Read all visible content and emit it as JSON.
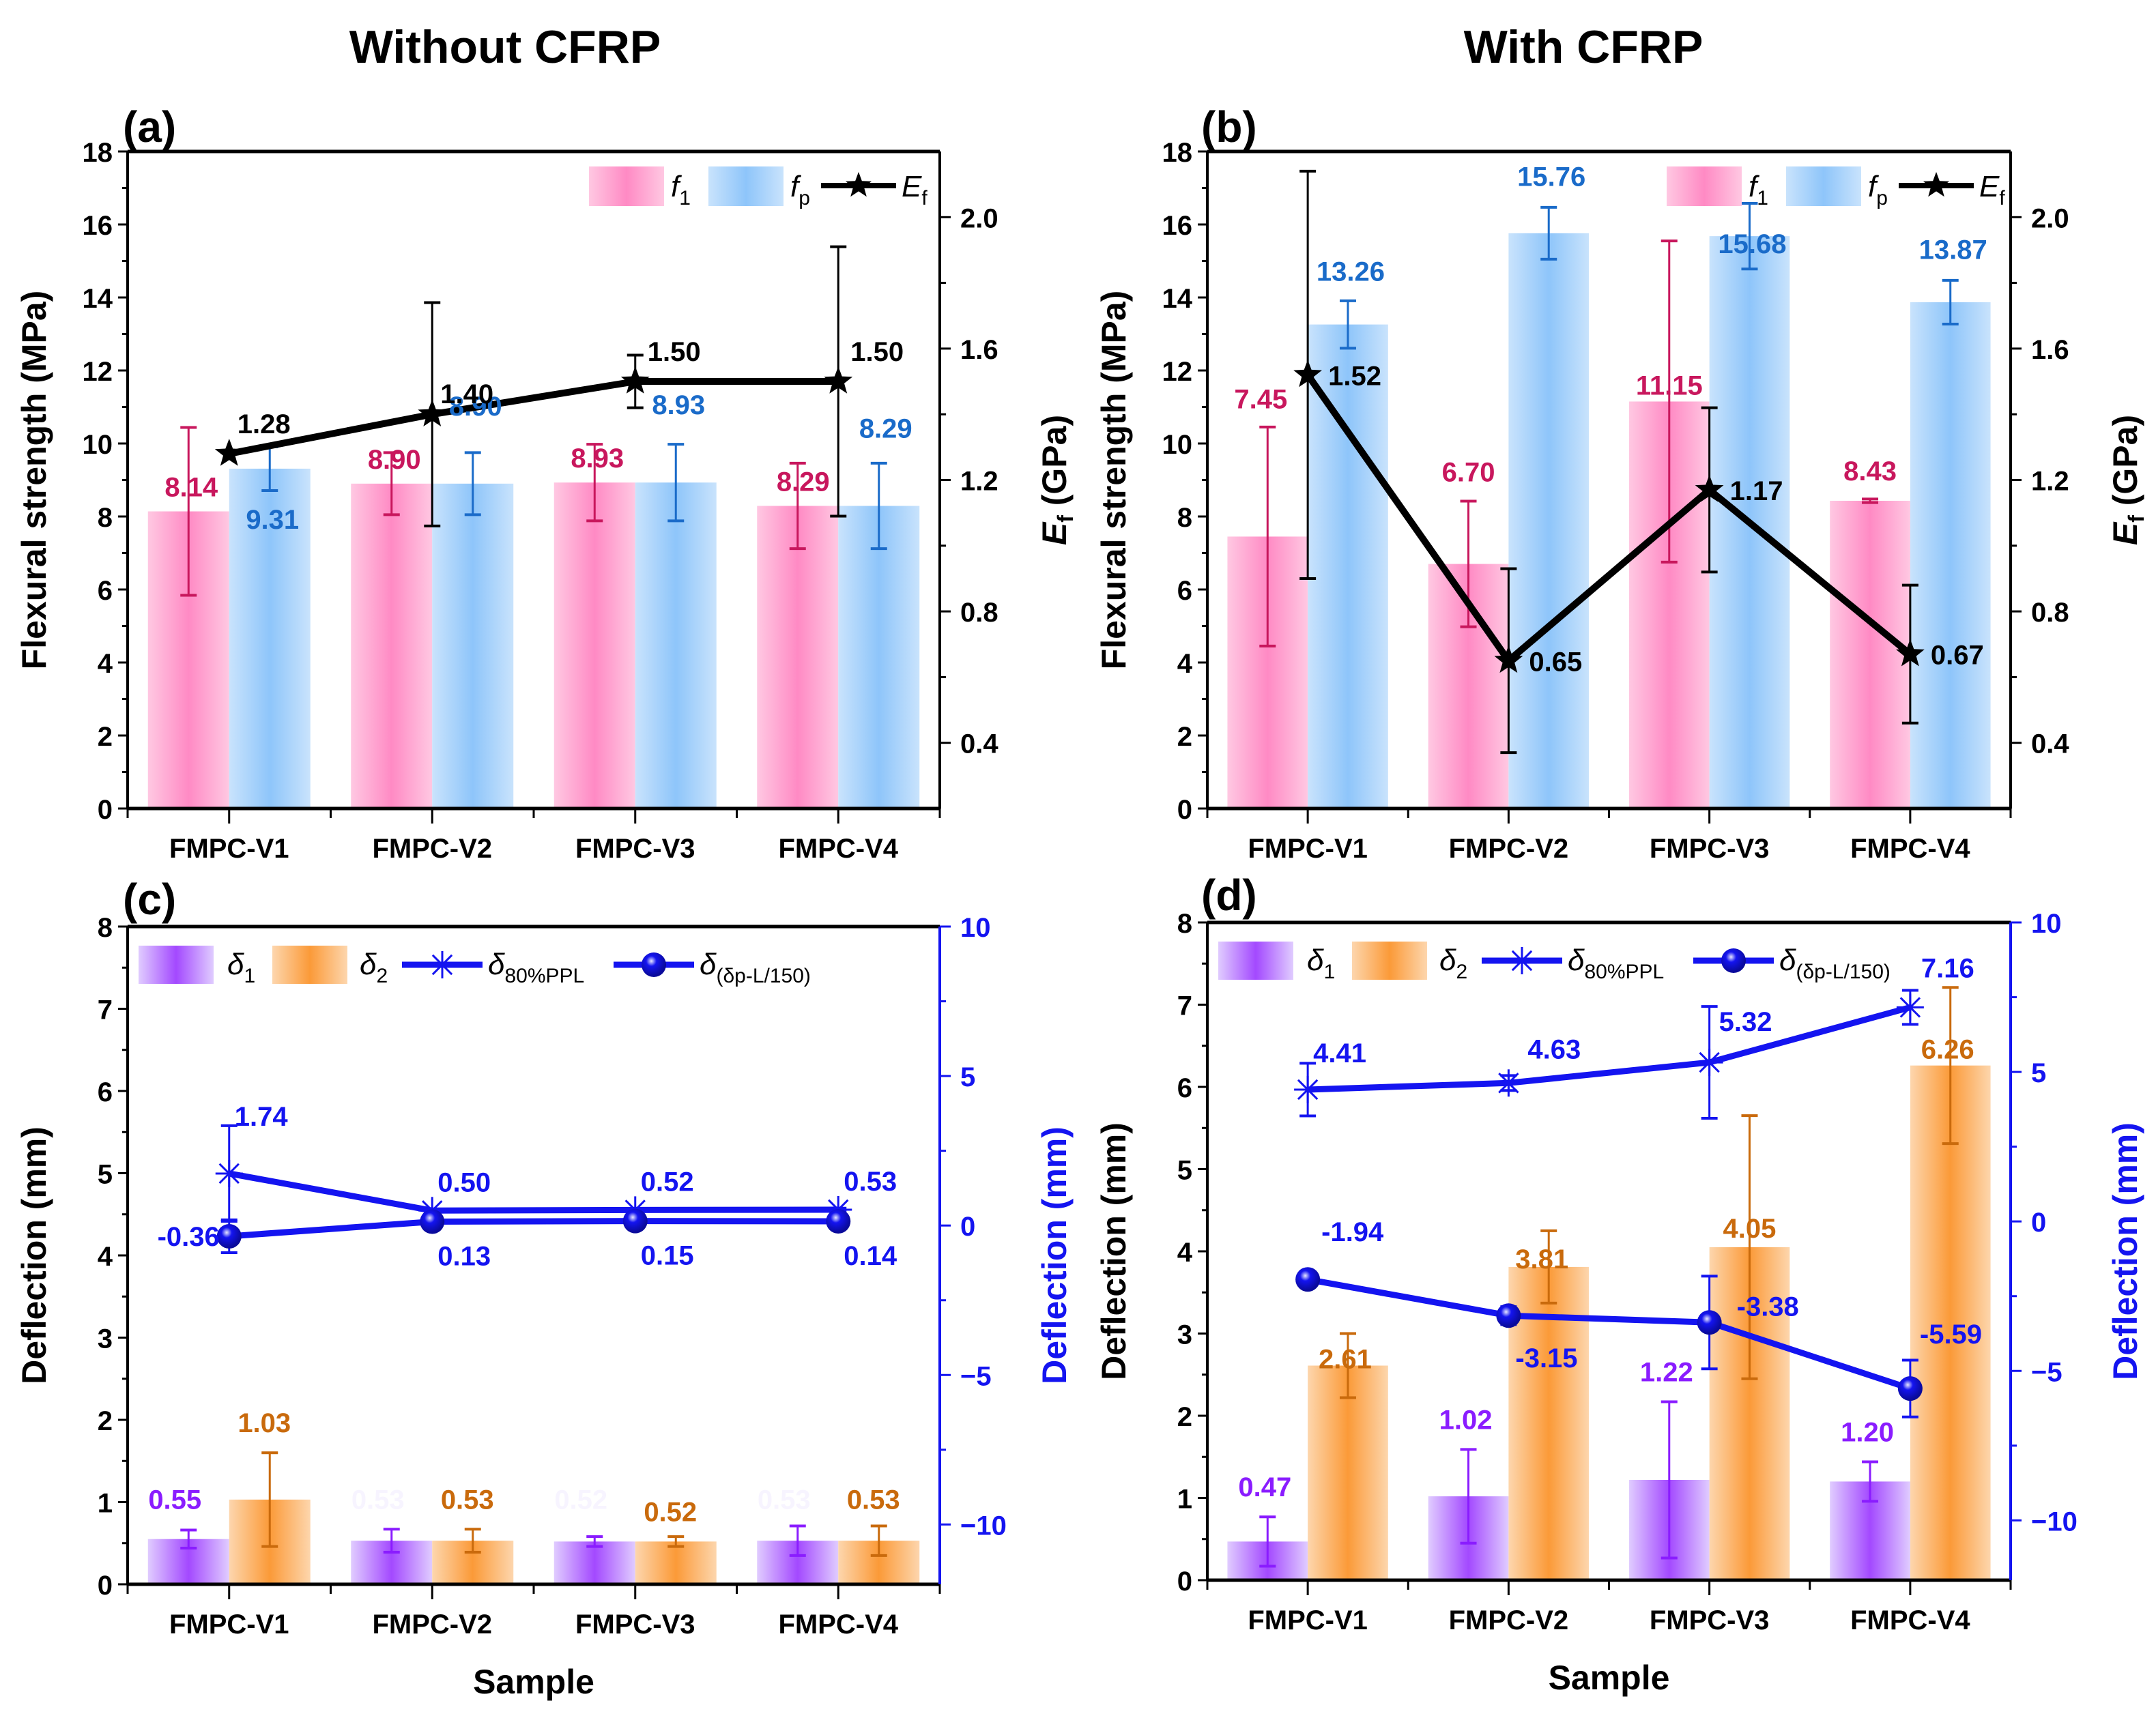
{
  "figure": {
    "column_titles": [
      "Without CFRP",
      "With CFRP"
    ]
  },
  "colors": {
    "f1_bar": "#ff8ac4",
    "f1_bar_light": "#ffc8e2",
    "f1_label": "#c8175d",
    "fp_bar": "#8ec5fa",
    "fp_bar_light": "#c9e3fc",
    "fp_label": "#1a6bc9",
    "ef_line": "#000000",
    "delta1_bar": "#a349ff",
    "delta1_bar_light": "#e0ccff",
    "delta1_label": "#8a1cff",
    "delta2_bar": "#fb9a38",
    "delta2_bar_light": "#fdd6ad",
    "delta2_label": "#c96a0c",
    "deflection_line": "#1414f0"
  },
  "chart_data": [
    {
      "panel": "(a)",
      "type": "bar",
      "column_title": "Without CFRP",
      "categories": [
        "FMPC-V1",
        "FMPC-V2",
        "FMPC-V3",
        "FMPC-V4"
      ],
      "xlabel": "",
      "ylabel": "Flexural strength (MPa)",
      "ylim": [
        0,
        18
      ],
      "yticks": [
        0,
        2,
        4,
        6,
        8,
        10,
        12,
        14,
        16,
        18
      ],
      "y2label": "E_f (GPa)",
      "y2label_main": "E",
      "y2label_sub": "f",
      "y2label_unit": " (GPa)",
      "y2lim": [
        0.2,
        2.2
      ],
      "y2ticks": [
        0.4,
        0.8,
        1.2,
        1.6,
        2.0
      ],
      "y2tick_labels": [
        "0.4",
        "0.8",
        "1.2",
        "1.6",
        "2.0"
      ],
      "legend": [
        {
          "key": "f1",
          "main": "f",
          "sub": "1",
          "kind": "bar"
        },
        {
          "key": "fp",
          "main": "f",
          "sub": "p",
          "kind": "bar"
        },
        {
          "key": "Ef",
          "main": "E",
          "sub": "f",
          "kind": "line-star"
        }
      ],
      "legend_position": "top-right",
      "series": [
        {
          "name": "f1",
          "axis": "left",
          "kind": "bar",
          "values": [
            8.14,
            8.9,
            8.93,
            8.29
          ],
          "errors": [
            2.3,
            0.85,
            1.05,
            1.17
          ],
          "labels": [
            "8.14",
            "8.90",
            "8.93",
            "8.29"
          ]
        },
        {
          "name": "fp",
          "axis": "left",
          "kind": "bar",
          "values": [
            9.31,
            8.9,
            8.93,
            8.29
          ],
          "errors": [
            0.6,
            0.85,
            1.05,
            1.17
          ],
          "labels": [
            "9.31",
            "8.90",
            "8.93",
            "8.29"
          ]
        },
        {
          "name": "Ef",
          "axis": "right",
          "kind": "line",
          "values": [
            1.28,
            1.4,
            1.5,
            1.5
          ],
          "errors": [
            0.0,
            0.34,
            0.08,
            0.41
          ],
          "labels": [
            "1.28",
            "1.40",
            "1.50",
            "1.50"
          ]
        }
      ]
    },
    {
      "panel": "(b)",
      "type": "bar",
      "column_title": "With CFRP",
      "categories": [
        "FMPC-V1",
        "FMPC-V2",
        "FMPC-V3",
        "FMPC-V4"
      ],
      "xlabel": "",
      "ylabel": "Flexural strength (MPa)",
      "ylim": [
        0,
        18
      ],
      "yticks": [
        0,
        2,
        4,
        6,
        8,
        10,
        12,
        14,
        16,
        18
      ],
      "y2label": "E_f (GPa)",
      "y2label_main": "E",
      "y2label_sub": "f",
      "y2label_unit": " (GPa)",
      "y2lim": [
        0.2,
        2.2
      ],
      "y2ticks": [
        0.4,
        0.8,
        1.2,
        1.6,
        2.0
      ],
      "y2tick_labels": [
        "0.4",
        "0.8",
        "1.2",
        "1.6",
        "2.0"
      ],
      "legend": [
        {
          "key": "f1",
          "main": "f",
          "sub": "1",
          "kind": "bar"
        },
        {
          "key": "fp",
          "main": "f",
          "sub": "p",
          "kind": "bar"
        },
        {
          "key": "Ef",
          "main": "E",
          "sub": "f",
          "kind": "line-star"
        }
      ],
      "legend_position": "top-right",
      "series": [
        {
          "name": "f1",
          "axis": "left",
          "kind": "bar",
          "values": [
            7.45,
            6.7,
            11.15,
            8.43
          ],
          "errors": [
            3.0,
            1.72,
            4.4,
            0.05
          ],
          "labels": [
            "7.45",
            "6.70",
            "11.15",
            "8.43"
          ]
        },
        {
          "name": "fp",
          "axis": "left",
          "kind": "bar",
          "values": [
            13.26,
            15.76,
            15.68,
            13.87
          ],
          "errors": [
            0.65,
            0.71,
            0.9,
            0.6
          ],
          "labels": [
            "13.26",
            "15.76",
            "15.68",
            "13.87"
          ]
        },
        {
          "name": "Ef",
          "axis": "right",
          "kind": "line",
          "values": [
            1.52,
            0.65,
            1.17,
            0.67
          ],
          "errors": [
            0.62,
            0.28,
            0.25,
            0.21
          ],
          "labels": [
            "1.52",
            "0.65",
            "1.17",
            "0.67"
          ]
        }
      ]
    },
    {
      "panel": "(c)",
      "type": "bar",
      "column_title": "Without CFRP",
      "categories": [
        "FMPC-V1",
        "FMPC-V2",
        "FMPC-V3",
        "FMPC-V4"
      ],
      "xlabel": "Sample",
      "ylabel": "Deflection (mm)",
      "ylim": [
        0,
        8
      ],
      "yticks": [
        0,
        1,
        2,
        3,
        4,
        5,
        6,
        7,
        8
      ],
      "y2label": "Deflection (mm)",
      "y2lim": [
        -12,
        10
      ],
      "y2ticks": [
        -10,
        -5,
        0,
        5,
        10
      ],
      "y2tick_labels": [
        "−10",
        "−5",
        "0",
        "5",
        "10"
      ],
      "legend": [
        {
          "key": "d1",
          "main": "δ",
          "sub": "1",
          "kind": "bar"
        },
        {
          "key": "d2",
          "main": "δ",
          "sub": "2",
          "kind": "bar"
        },
        {
          "key": "d80",
          "main": "δ",
          "sub": "80%PPL",
          "kind": "line-asterisk"
        },
        {
          "key": "dL",
          "main": "δ",
          "sub": "(δp-L/150)",
          "kind": "line-ball"
        }
      ],
      "legend_position": "top-left",
      "series": [
        {
          "name": "δ1",
          "axis": "left",
          "kind": "bar",
          "values": [
            0.55,
            0.53,
            0.52,
            0.53
          ],
          "errors": [
            0.11,
            0.14,
            0.06,
            0.18
          ],
          "labels": [
            "0.55",
            "0.53",
            "0.52",
            "0.53"
          ],
          "label_visible": [
            true,
            false,
            false,
            false
          ]
        },
        {
          "name": "δ2",
          "axis": "left",
          "kind": "bar",
          "values": [
            1.03,
            0.53,
            0.52,
            0.53
          ],
          "errors": [
            0.57,
            0.14,
            0.06,
            0.18
          ],
          "labels": [
            "1.03",
            "0.53",
            "0.52",
            "0.53"
          ]
        },
        {
          "name": "δ80%PPL",
          "axis": "right",
          "kind": "line",
          "values": [
            1.74,
            0.5,
            0.52,
            0.53
          ],
          "errors": [
            1.6,
            0.05,
            0.05,
            0.05
          ],
          "labels": [
            "1.74",
            "0.50",
            "0.52",
            "0.53"
          ]
        },
        {
          "name": "δ(δp-L/150)",
          "axis": "right",
          "kind": "line",
          "values": [
            -0.36,
            0.13,
            0.15,
            0.14
          ],
          "errors": [
            0.55,
            0.05,
            0.05,
            0.05
          ],
          "labels": [
            "-0.36",
            "0.13",
            "0.15",
            "0.14"
          ]
        }
      ]
    },
    {
      "panel": "(d)",
      "type": "bar",
      "column_title": "With CFRP",
      "categories": [
        "FMPC-V1",
        "FMPC-V2",
        "FMPC-V3",
        "FMPC-V4"
      ],
      "xlabel": "Sample",
      "ylabel": "Deflection (mm)",
      "ylim": [
        0,
        8
      ],
      "yticks": [
        0,
        1,
        2,
        3,
        4,
        5,
        6,
        7,
        8
      ],
      "y2label": "Deflection (mm)",
      "y2lim": [
        -12,
        10
      ],
      "y2ticks": [
        -10,
        -5,
        0,
        5,
        10
      ],
      "y2tick_labels": [
        "−10",
        "−5",
        "0",
        "5",
        "10"
      ],
      "legend": [
        {
          "key": "d1",
          "main": "δ",
          "sub": "1",
          "kind": "bar"
        },
        {
          "key": "d2",
          "main": "δ",
          "sub": "2",
          "kind": "bar"
        },
        {
          "key": "d80",
          "main": "δ",
          "sub": "80%PPL",
          "kind": "line-asterisk"
        },
        {
          "key": "dL",
          "main": "δ",
          "sub": "(δp-L/150)",
          "kind": "line-ball"
        }
      ],
      "legend_position": "top-left",
      "series": [
        {
          "name": "δ1",
          "axis": "left",
          "kind": "bar",
          "values": [
            0.47,
            1.02,
            1.22,
            1.2
          ],
          "errors": [
            0.3,
            0.57,
            0.95,
            0.24
          ],
          "labels": [
            "0.47",
            "1.02",
            "1.22",
            "1.20"
          ]
        },
        {
          "name": "δ2",
          "axis": "left",
          "kind": "bar",
          "values": [
            2.61,
            3.81,
            4.05,
            6.26
          ],
          "errors": [
            0.39,
            0.44,
            1.6,
            0.95
          ],
          "labels": [
            "2.61",
            "3.81",
            "4.05",
            "6.26"
          ]
        },
        {
          "name": "δ80%PPL",
          "axis": "right",
          "kind": "line",
          "values": [
            4.41,
            4.63,
            5.32,
            7.16
          ],
          "errors": [
            0.88,
            0.25,
            1.87,
            0.57
          ],
          "labels": [
            "4.41",
            "4.63",
            "5.32",
            "7.16"
          ]
        },
        {
          "name": "δ(δp-L/150)",
          "axis": "right",
          "kind": "line",
          "values": [
            -1.94,
            -3.15,
            -3.38,
            -5.59
          ],
          "errors": [
            0.25,
            0.3,
            1.55,
            0.95
          ],
          "labels": [
            "-1.94",
            "-3.15",
            "-3.38",
            "-5.59"
          ]
        }
      ]
    }
  ]
}
